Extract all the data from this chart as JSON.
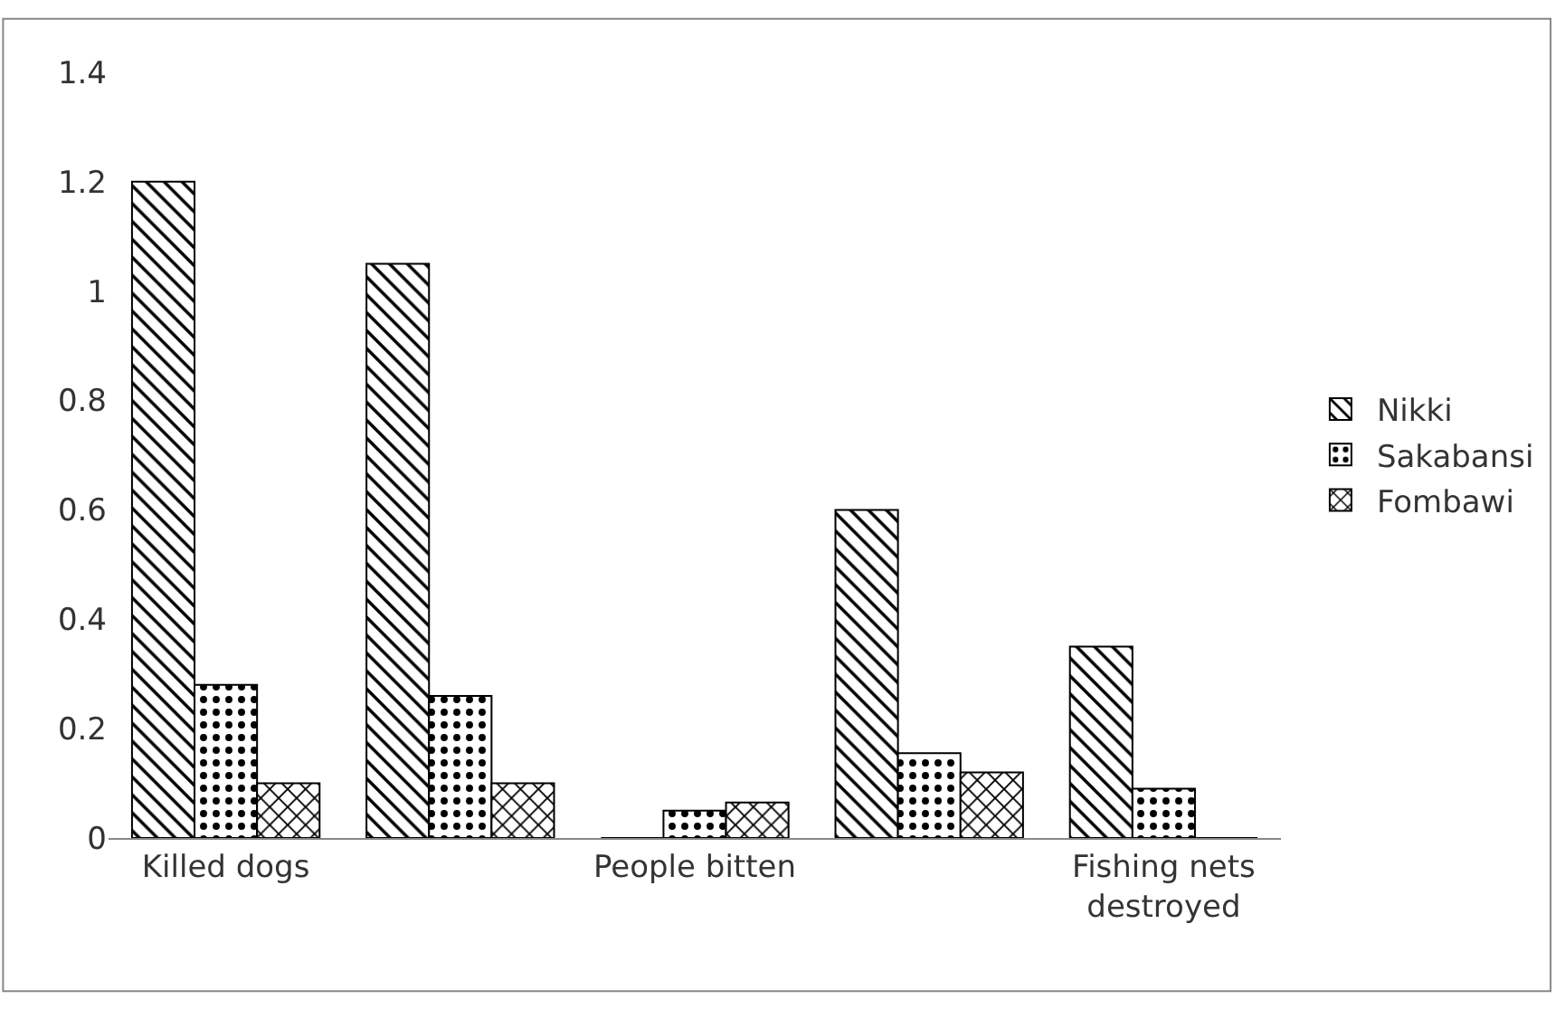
{
  "chart_data": {
    "type": "bar",
    "categories": [
      "Killed dogs",
      null,
      "People bitten",
      null,
      "Fishing nets destroyed"
    ],
    "series": [
      {
        "name": "Nikki",
        "color": "#000000",
        "values": [
          1.2,
          1.05,
          0,
          0.6,
          0.35
        ]
      },
      {
        "name": "Sakabansi",
        "color": "#000000",
        "values": [
          0.28,
          0.26,
          0.05,
          0.155,
          0.09
        ]
      },
      {
        "name": "Fombawi",
        "color": "#000000",
        "values": [
          0.1,
          0.1,
          0.065,
          0.12,
          0
        ]
      }
    ],
    "ylim": [
      0,
      1.4
    ],
    "yticks": [
      0,
      0.2,
      0.4,
      0.6,
      0.8,
      1,
      1.2,
      1.4
    ],
    "grid": false,
    "legend": "right"
  }
}
